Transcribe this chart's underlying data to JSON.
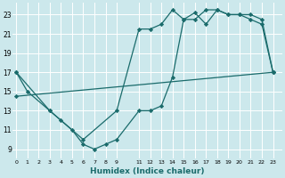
{
  "xlabel": "Humidex (Indice chaleur)",
  "bg_color": "#cce8ec",
  "line_color": "#1a6b6b",
  "grid_color": "#ffffff",
  "yticks": [
    9,
    11,
    13,
    15,
    17,
    19,
    21,
    23
  ],
  "xtick_labels": [
    "0",
    "1",
    "2",
    "3",
    "4",
    "5",
    "6",
    "7",
    "8",
    "9",
    "11",
    "12",
    "13",
    "14",
    "15",
    "16",
    "17",
    "18",
    "19",
    "20",
    "21",
    "22",
    "23"
  ],
  "xtick_pos": [
    0,
    1,
    2,
    3,
    4,
    5,
    6,
    7,
    8,
    9,
    11,
    12,
    13,
    14,
    15,
    16,
    17,
    18,
    19,
    20,
    21,
    22,
    23
  ],
  "xlim": [
    -0.3,
    23.8
  ],
  "ylim": [
    8.0,
    24.2
  ],
  "line1_x": [
    0,
    1,
    3,
    4,
    5,
    6,
    7,
    8,
    9,
    11,
    12,
    13,
    14,
    15,
    16,
    17,
    18,
    19,
    20,
    21,
    22,
    23
  ],
  "line1_y": [
    17,
    15,
    13,
    12,
    11,
    9.5,
    9,
    9.5,
    10,
    13,
    13,
    13.5,
    16.5,
    22.5,
    22.5,
    23.5,
    23.5,
    23,
    23,
    22.5,
    22,
    17
  ],
  "line2_x": [
    0,
    3,
    6,
    9,
    11,
    12,
    13,
    14,
    15,
    16,
    17,
    18,
    19,
    20,
    21,
    22,
    23
  ],
  "line2_y": [
    17,
    13,
    10,
    13,
    21.5,
    21.5,
    22,
    23.5,
    22.5,
    23.2,
    22,
    23.5,
    23,
    23,
    23,
    22.5,
    17
  ],
  "line3_x": [
    0,
    23
  ],
  "line3_y": [
    14.5,
    17
  ]
}
